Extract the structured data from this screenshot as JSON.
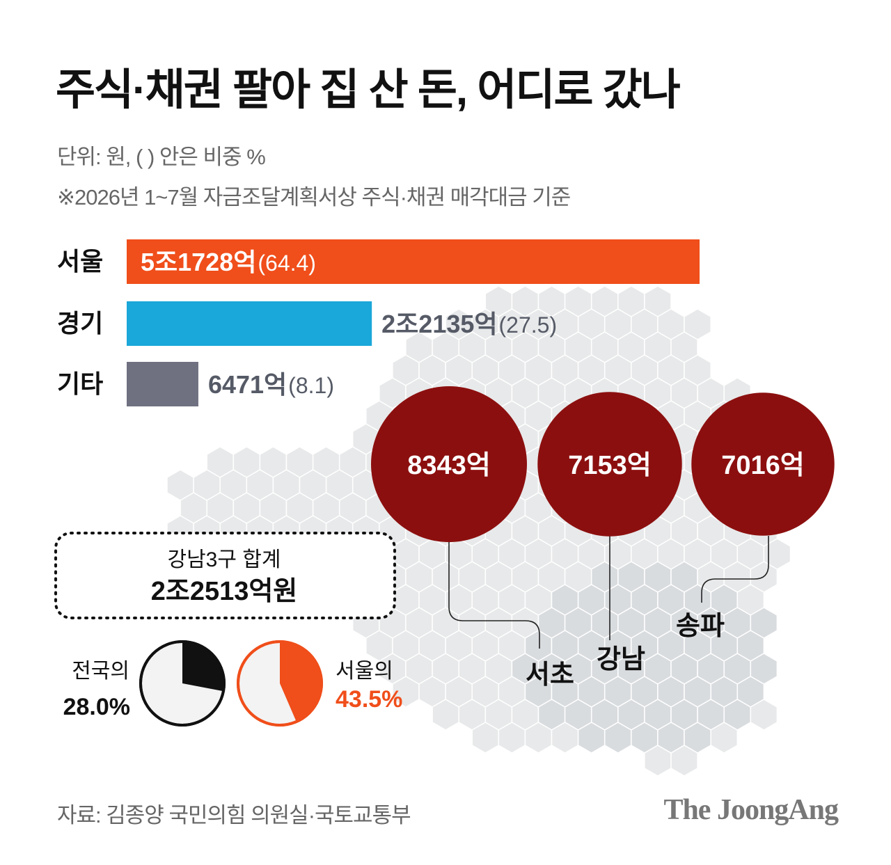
{
  "title": "주식·채권 팔아 집 산 돈, 어디로 갔나",
  "notes": {
    "unit": "단위: 원, ( ) 안은 비중 %",
    "basis": "※2026년 1~7월 자금조달계획서상 주식·채권 매각대금 기준"
  },
  "source": "자료: 김종양 국민의힘 의원실·국토교통부",
  "brand": "The JoongAng",
  "colors": {
    "seoul": "#f04e1a",
    "gyeonggi": "#1aa7d9",
    "other": "#6f7080",
    "district": "#8c0f0f",
    "map": "#e8e9ea",
    "pie_national": "#111111",
    "pie_seoul": "#f04e1a"
  },
  "chart_data": [
    {
      "type": "bar",
      "orientation": "horizontal",
      "categories": [
        "서울",
        "경기",
        "기타"
      ],
      "values": [
        51728,
        22135,
        6471
      ],
      "value_unit": "억원",
      "value_labels": [
        "5조1728억",
        "2조2135억",
        "6471억"
      ],
      "shares": [
        64.4,
        27.5,
        8.1
      ],
      "share_labels": [
        "(64.4)",
        "(27.5)",
        "(8.1)"
      ]
    },
    {
      "type": "bubble",
      "categories": [
        "서초",
        "강남",
        "송파"
      ],
      "values": [
        8343,
        7153,
        7016
      ],
      "value_unit": "억원",
      "value_labels": [
        "8343억",
        "7153억",
        "7016억"
      ],
      "total_label": "강남3구 합계",
      "total_value": "2조2513억원"
    },
    {
      "type": "pie",
      "caption": "전국의",
      "value": 28.0,
      "value_label": "28.0%"
    },
    {
      "type": "pie",
      "caption": "서울의",
      "value": 43.5,
      "value_label": "43.5%"
    }
  ]
}
